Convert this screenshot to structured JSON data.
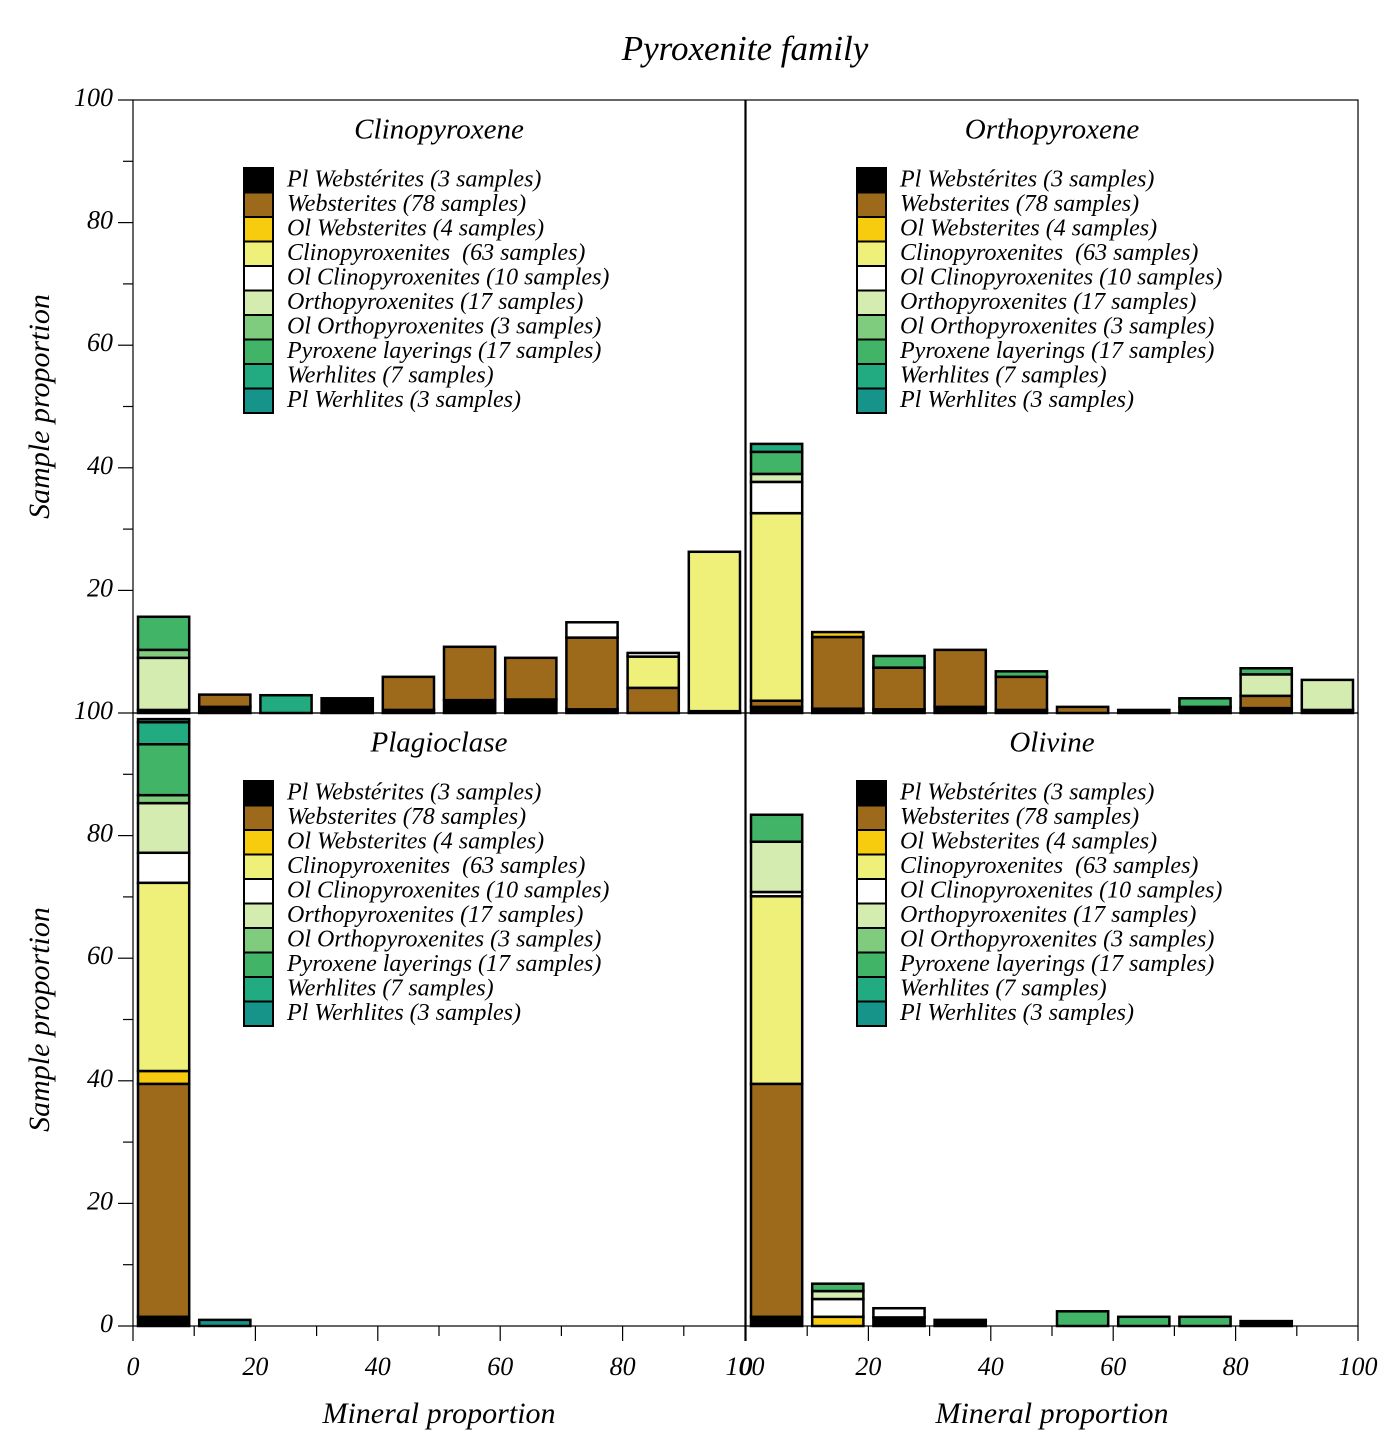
{
  "title": "Pyroxenite family",
  "chart_data": [
    {
      "type": "histogram",
      "title": "Clinopyroxene",
      "ylabel": "Sample proportion",
      "bins": [
        0,
        10,
        20,
        30,
        40,
        50,
        60,
        70,
        80,
        90,
        100
      ],
      "xlim": [
        0,
        100
      ],
      "ylim": [
        0,
        100
      ],
      "yticks": [
        20,
        40,
        60,
        80,
        100
      ],
      "series": [
        {
          "name": "Pl Webstérites (3 samples)",
          "color": "#000000",
          "values": [
            0.5,
            1,
            0,
            2.4,
            0.5,
            2.1,
            2.2,
            0.6,
            0,
            0.3
          ]
        },
        {
          "name": "Websterites (78 samples)",
          "color": "#9c6a1a",
          "values": [
            0,
            2,
            0,
            0,
            5.4,
            8.7,
            6.8,
            11.7,
            4.1,
            0
          ]
        },
        {
          "name": "Ol Websterites (4 samples)",
          "color": "#f7cb0e",
          "values": [
            0,
            0,
            0,
            0,
            0,
            0,
            0,
            0,
            0,
            0
          ]
        },
        {
          "name": "Clinopyroxenites  (63 samples)",
          "color": "#eef07a",
          "values": [
            0,
            0,
            0,
            0,
            0,
            0,
            0,
            0,
            5.1,
            26
          ]
        },
        {
          "name": "Ol Clinopyroxenites (10 samples)",
          "color": "#ffffff",
          "values": [
            0,
            0,
            0,
            0,
            0,
            0,
            0,
            2.5,
            0.6,
            0
          ]
        },
        {
          "name": "Orthopyroxenites (17 samples)",
          "color": "#d4ecb0",
          "values": [
            8.5,
            0,
            0,
            0,
            0,
            0,
            0,
            0,
            0,
            0
          ]
        },
        {
          "name": "Ol Orthopyroxenites (3 samples)",
          "color": "#80cc7e",
          "values": [
            1.3,
            0,
            0,
            0,
            0,
            0,
            0,
            0,
            0,
            0
          ]
        },
        {
          "name": "Pyroxene layerings (17 samples)",
          "color": "#41b468",
          "values": [
            5.4,
            0,
            0,
            0,
            0,
            0,
            0,
            0,
            0,
            0
          ]
        },
        {
          "name": "Werhlites (7 samples)",
          "color": "#22ab80",
          "values": [
            0,
            0,
            2.9,
            0,
            0,
            0,
            0,
            0,
            0,
            0
          ]
        },
        {
          "name": "Pl Werhlites (3 samples)",
          "color": "#16948a",
          "values": [
            0,
            0,
            0,
            0,
            0,
            0,
            0,
            0,
            0,
            0
          ]
        }
      ]
    },
    {
      "type": "histogram",
      "title": "Orthopyroxene",
      "bins": [
        0,
        10,
        20,
        30,
        40,
        50,
        60,
        70,
        80,
        90,
        100
      ],
      "xlim": [
        0,
        100
      ],
      "ylim": [
        0,
        100
      ],
      "series": [
        {
          "name": "Pl Webstérites (3 samples)",
          "color": "#000000",
          "values": [
            1,
            0.7,
            0.6,
            1,
            0.5,
            0,
            0.5,
            1,
            0.8,
            0.5
          ]
        },
        {
          "name": "Websterites (78 samples)",
          "color": "#9c6a1a",
          "values": [
            1,
            11.7,
            6.8,
            9.3,
            5.4,
            1,
            0,
            0,
            2,
            0
          ]
        },
        {
          "name": "Ol Websterites (4 samples)",
          "color": "#f7cb0e",
          "values": [
            0,
            0.8,
            0,
            0,
            0,
            0,
            0,
            0,
            0,
            0
          ]
        },
        {
          "name": "Clinopyroxenites  (63 samples)",
          "color": "#eef07a",
          "values": [
            30.6,
            0,
            0,
            0,
            0,
            0,
            0,
            0,
            0,
            0
          ]
        },
        {
          "name": "Ol Clinopyroxenites (10 samples)",
          "color": "#ffffff",
          "values": [
            5.1,
            0,
            0,
            0,
            0,
            0,
            0,
            0,
            0,
            0
          ]
        },
        {
          "name": "Orthopyroxenites (17 samples)",
          "color": "#d4ecb0",
          "values": [
            1.3,
            0,
            0,
            0,
            0,
            0,
            0,
            0,
            3.5,
            4.9
          ]
        },
        {
          "name": "Ol Orthopyroxenites (3 samples)",
          "color": "#80cc7e",
          "values": [
            0,
            0,
            0,
            0,
            0,
            0,
            0,
            0,
            0,
            0
          ]
        },
        {
          "name": "Pyroxene layerings (17 samples)",
          "color": "#41b468",
          "values": [
            3.6,
            0,
            1.9,
            0,
            0.9,
            0,
            0,
            1.4,
            1,
            0
          ]
        },
        {
          "name": "Werhlites (7 samples)",
          "color": "#22ab80",
          "values": [
            1.3,
            0,
            0,
            0,
            0,
            0,
            0,
            0,
            0,
            0
          ]
        },
        {
          "name": "Pl Werhlites (3 samples)",
          "color": "#16948a",
          "values": [
            0,
            0,
            0,
            0,
            0,
            0,
            0,
            0,
            0,
            0
          ]
        }
      ]
    },
    {
      "type": "histogram",
      "title": "Plagioclase",
      "ylabel": "Sample proportion",
      "xlabel": "Mineral proportion",
      "bins": [
        0,
        10,
        20,
        30,
        40,
        50,
        60,
        70,
        80,
        90,
        100
      ],
      "xlim": [
        0,
        100
      ],
      "xticks": [
        0,
        20,
        40,
        60,
        80,
        100
      ],
      "ylim": [
        0,
        100
      ],
      "yticks": [
        0,
        20,
        40,
        60,
        80,
        100
      ],
      "series": [
        {
          "name": "Pl Webstérites (3 samples)",
          "color": "#000000",
          "values": [
            1.5,
            0,
            0,
            0,
            0,
            0,
            0,
            0,
            0,
            0
          ]
        },
        {
          "name": "Websterites (78 samples)",
          "color": "#9c6a1a",
          "values": [
            38,
            0,
            0,
            0,
            0,
            0,
            0,
            0,
            0,
            0
          ]
        },
        {
          "name": "Ol Websterites (4 samples)",
          "color": "#f7cb0e",
          "values": [
            2.1,
            0,
            0,
            0,
            0,
            0,
            0,
            0,
            0,
            0
          ]
        },
        {
          "name": "Clinopyroxenites  (63 samples)",
          "color": "#eef07a",
          "values": [
            30.7,
            0,
            0,
            0,
            0,
            0,
            0,
            0,
            0,
            0
          ]
        },
        {
          "name": "Ol Clinopyroxenites (10 samples)",
          "color": "#ffffff",
          "values": [
            4.9,
            0,
            0,
            0,
            0,
            0,
            0,
            0,
            0,
            0
          ]
        },
        {
          "name": "Orthopyroxenites (17 samples)",
          "color": "#d4ecb0",
          "values": [
            8.1,
            0,
            0,
            0,
            0,
            0,
            0,
            0,
            0,
            0
          ]
        },
        {
          "name": "Ol Orthopyroxenites (3 samples)",
          "color": "#80cc7e",
          "values": [
            1.3,
            0,
            0,
            0,
            0,
            0,
            0,
            0,
            0,
            0
          ]
        },
        {
          "name": "Pyroxene layerings (17 samples)",
          "color": "#41b468",
          "values": [
            8.3,
            0,
            0,
            0,
            0,
            0,
            0,
            0,
            0,
            0
          ]
        },
        {
          "name": "Werhlites (7 samples)",
          "color": "#22ab80",
          "values": [
            3.6,
            0,
            0,
            0,
            0,
            0,
            0,
            0,
            0,
            0
          ]
        },
        {
          "name": "Pl Werhlites (3 samples)",
          "color": "#16948a",
          "values": [
            0.5,
            1,
            0,
            0,
            0,
            0,
            0,
            0,
            0,
            0
          ]
        }
      ]
    },
    {
      "type": "histogram",
      "title": "Olivine",
      "xlabel": "Mineral proportion",
      "bins": [
        0,
        10,
        20,
        30,
        40,
        50,
        60,
        70,
        80,
        90,
        100
      ],
      "xlim": [
        0,
        100
      ],
      "xticks": [
        0,
        20,
        40,
        60,
        80,
        100
      ],
      "ylim": [
        0,
        100
      ],
      "series": [
        {
          "name": "Pl Webstérites (3 samples)",
          "color": "#000000",
          "values": [
            1.5,
            0,
            1.4,
            1,
            0,
            0,
            0,
            0,
            0.8,
            0
          ]
        },
        {
          "name": "Websterites (78 samples)",
          "color": "#9c6a1a",
          "values": [
            38,
            0,
            0,
            0,
            0,
            0,
            0,
            0,
            0,
            0
          ]
        },
        {
          "name": "Ol Websterites (4 samples)",
          "color": "#f7cb0e",
          "values": [
            0,
            1.5,
            0,
            0,
            0,
            0,
            0,
            0,
            0,
            0
          ]
        },
        {
          "name": "Clinopyroxenites  (63 samples)",
          "color": "#eef07a",
          "values": [
            30.6,
            0,
            0,
            0,
            0,
            0,
            0,
            0,
            0,
            0
          ]
        },
        {
          "name": "Ol Clinopyroxenites (10 samples)",
          "color": "#ffffff",
          "values": [
            0.7,
            2.9,
            1.5,
            0,
            0,
            0,
            0,
            0,
            0,
            0
          ]
        },
        {
          "name": "Orthopyroxenites (17 samples)",
          "color": "#d4ecb0",
          "values": [
            8.2,
            1.3,
            0,
            0,
            0,
            0,
            0,
            0,
            0,
            0
          ]
        },
        {
          "name": "Ol Orthopyroxenites (3 samples)",
          "color": "#80cc7e",
          "values": [
            0,
            0,
            0,
            0,
            0,
            0,
            0,
            0,
            0,
            0
          ]
        },
        {
          "name": "Pyroxene layerings (17 samples)",
          "color": "#41b468",
          "values": [
            4.4,
            1.2,
            0,
            0,
            0,
            2.4,
            1.5,
            1.5,
            0,
            0
          ]
        },
        {
          "name": "Werhlites (7 samples)",
          "color": "#22ab80",
          "values": [
            0,
            0,
            0,
            0,
            0,
            0,
            0,
            0,
            0,
            0
          ]
        },
        {
          "name": "Pl Werhlites (3 samples)",
          "color": "#16948a",
          "values": [
            0,
            0,
            0,
            0,
            0,
            0,
            0,
            0,
            0,
            0
          ]
        }
      ]
    }
  ]
}
